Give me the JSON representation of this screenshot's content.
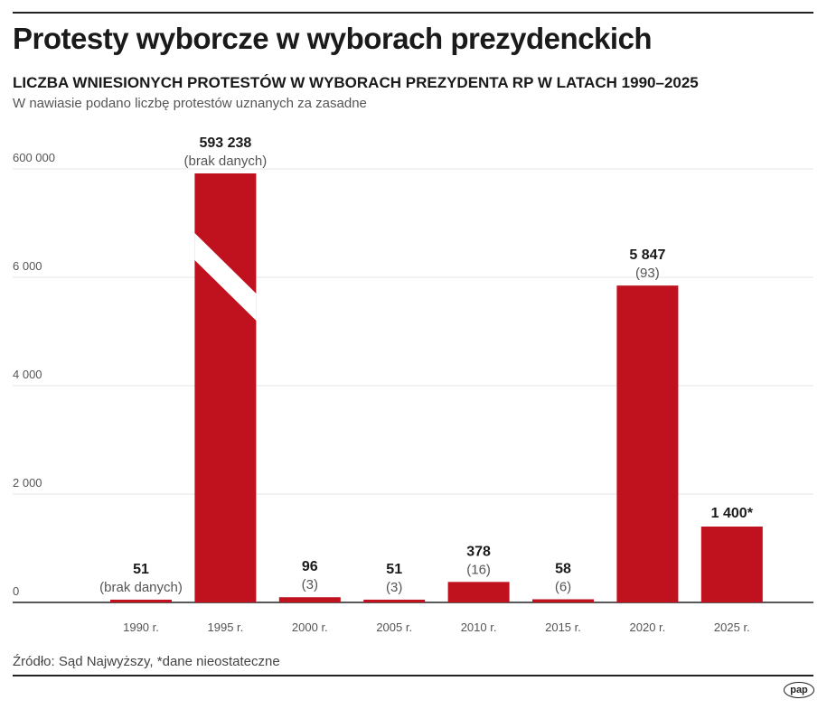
{
  "title": "Protesty wyborcze w wyborach prezydenckich",
  "subtitle": "LICZBA WNIESIONYCH PROTESTÓW W WYBORACH PREZYDENTA RP W LATACH 1990–2025",
  "note": "W nawiasie podano liczbę protestów uznanych za zasadne",
  "source": "Źródło: Sąd Najwyższy, *dane nieostateczne",
  "logo": "pap",
  "colors": {
    "bar": "#c0111f",
    "grid": "#e6e6e6"
  },
  "chart_data": {
    "type": "bar",
    "categories": [
      "1990 r.",
      "1995 r.",
      "2000 r.",
      "2005 r.",
      "2010 r.",
      "2015 r.",
      "2020 r.",
      "2025 r."
    ],
    "values": [
      51,
      593238,
      96,
      51,
      378,
      58,
      5847,
      1400
    ],
    "value_labels": [
      "51",
      "593 238",
      "96",
      "51",
      "378",
      "58",
      "5 847",
      "1 400*"
    ],
    "accepted_labels": [
      "(brak danych)",
      "(brak danych)",
      "(3)",
      "(3)",
      "(16)",
      "(6)",
      "(93)",
      ""
    ],
    "y_tick_labels": [
      "0",
      "2 000",
      "4 000",
      "6 000",
      "600 000"
    ],
    "y_ticks": [
      0,
      2000,
      4000,
      6000,
      600000
    ],
    "axis_break": "between 6 000 and 600 000",
    "grid": true
  }
}
